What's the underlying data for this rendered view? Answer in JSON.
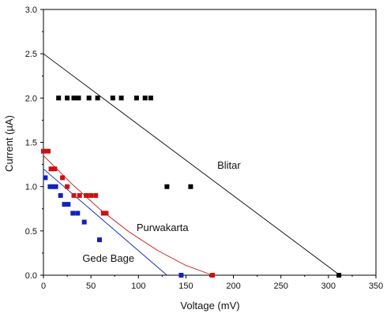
{
  "chart_data": {
    "type": "scatter",
    "xlabel": "Voltage (mV)",
    "ylabel": "Current (µA)",
    "xlim": [
      0,
      350
    ],
    "ylim": [
      0,
      3.0
    ],
    "x_ticks": [
      "0",
      "50",
      "100",
      "150",
      "200",
      "250",
      "300",
      "350"
    ],
    "y_ticks": [
      "0.0",
      "0.5",
      "1.0",
      "1.5",
      "2.0",
      "2.5",
      "3.0"
    ],
    "grid": false,
    "series": [
      {
        "name": "Blitar",
        "color": "#000000",
        "points": [
          [
            16,
            2.0
          ],
          [
            25,
            2.0
          ],
          [
            32,
            2.0
          ],
          [
            37,
            2.0
          ],
          [
            48,
            2.0
          ],
          [
            57,
            2.0
          ],
          [
            73,
            2.0
          ],
          [
            82,
            2.0
          ],
          [
            98,
            2.0
          ],
          [
            107,
            2.0
          ],
          [
            113,
            2.0
          ],
          [
            130,
            1.0
          ],
          [
            155,
            1.0
          ],
          [
            311,
            0.0
          ]
        ],
        "fit_line": [
          [
            0,
            2.5
          ],
          [
            312,
            0.0
          ]
        ]
      },
      {
        "name": "Purwakarta",
        "color": "#cc1111",
        "points": [
          [
            0,
            1.4
          ],
          [
            5,
            1.4
          ],
          [
            8,
            1.2
          ],
          [
            12,
            1.2
          ],
          [
            20,
            1.1
          ],
          [
            25,
            1.0
          ],
          [
            32,
            0.9
          ],
          [
            38,
            0.9
          ],
          [
            45,
            0.9
          ],
          [
            50,
            0.9
          ],
          [
            55,
            0.9
          ],
          [
            63,
            0.7
          ],
          [
            66,
            0.7
          ],
          [
            178,
            0.0
          ]
        ],
        "fit_curve": [
          [
            0,
            1.35
          ],
          [
            30,
            1.03
          ],
          [
            60,
            0.74
          ],
          [
            90,
            0.49
          ],
          [
            120,
            0.28
          ],
          [
            150,
            0.11
          ],
          [
            178,
            0.0
          ]
        ]
      },
      {
        "name": "Gede Bage",
        "color": "#1122bb",
        "points": [
          [
            2,
            1.1
          ],
          [
            7,
            1.0
          ],
          [
            10,
            1.0
          ],
          [
            13,
            1.0
          ],
          [
            18,
            0.9
          ],
          [
            22,
            0.8
          ],
          [
            26,
            0.8
          ],
          [
            31,
            0.7
          ],
          [
            36,
            0.7
          ],
          [
            43,
            0.6
          ],
          [
            59,
            0.4
          ],
          [
            145,
            0.0
          ]
        ],
        "fit_line": [
          [
            0,
            1.2
          ],
          [
            130,
            0.0
          ]
        ]
      }
    ],
    "annotations": [
      {
        "text": "Blitar",
        "x": 183,
        "y": 1.2
      },
      {
        "text": "Purwakarta",
        "x": 98,
        "y": 0.5
      },
      {
        "text": "Gede Bage",
        "x": 41,
        "y": 0.15
      }
    ]
  }
}
